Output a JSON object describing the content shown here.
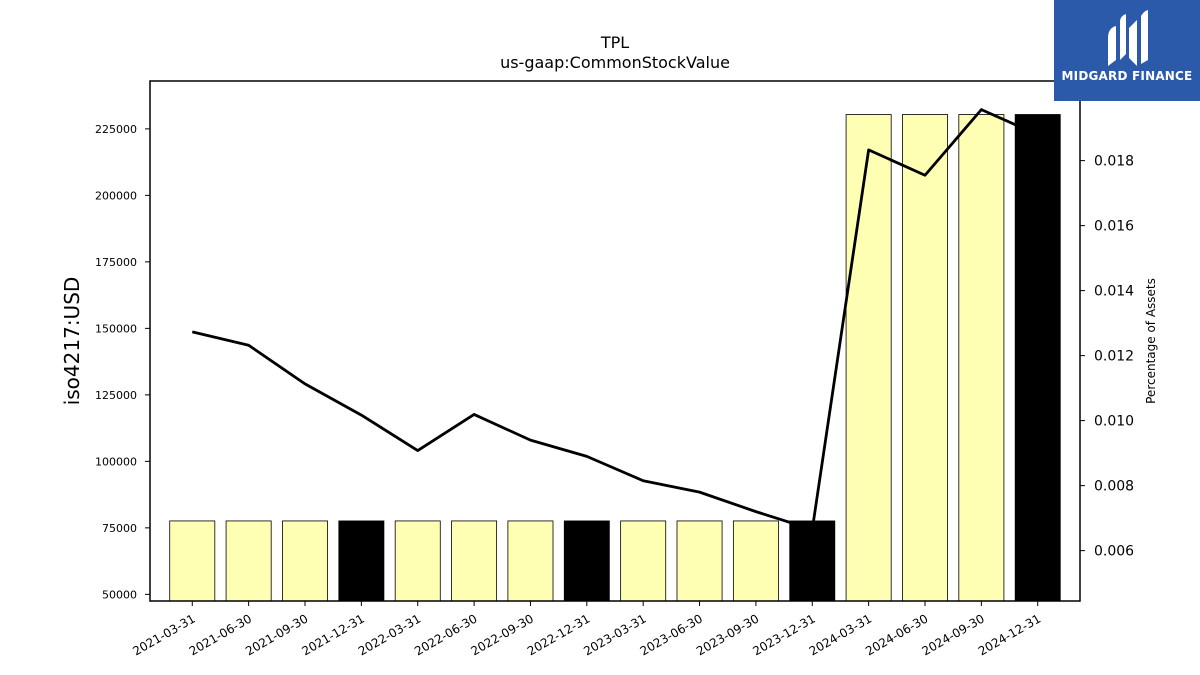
{
  "brand": {
    "name": "MIDGARD FINANCE",
    "bg_color": "#2b5aaa"
  },
  "chart_data": {
    "type": "bar",
    "title": "TPL",
    "subtitle": "us-gaap:CommonStockValue",
    "ylabel": "iso4217:USD",
    "y2label": "Percentage of Assets",
    "categories": [
      "2021-03-31",
      "2021-06-30",
      "2021-09-30",
      "2021-12-31",
      "2022-03-31",
      "2022-06-30",
      "2022-09-30",
      "2022-12-31",
      "2023-03-31",
      "2023-06-30",
      "2023-09-30",
      "2023-12-31",
      "2024-03-31",
      "2024-06-30",
      "2024-09-30",
      "2024-12-31"
    ],
    "ylim": [
      47500,
      243000
    ],
    "y2lim": [
      0.00445,
      0.02045
    ],
    "yticks": [
      50000,
      75000,
      100000,
      125000,
      150000,
      175000,
      200000,
      225000
    ],
    "y2ticks": [
      "0.006",
      "0.008",
      "0.010",
      "0.012",
      "0.014",
      "0.016",
      "0.018"
    ],
    "series": [
      {
        "type": "bar",
        "values": [
          77600,
          77600,
          77600,
          77600,
          77600,
          77600,
          77600,
          77600,
          77600,
          77600,
          77600,
          77600,
          230400,
          230400,
          230400,
          230400
        ],
        "colors": [
          "#ffffb3",
          "#ffffb3",
          "#ffffb3",
          "#000000",
          "#ffffb3",
          "#ffffb3",
          "#ffffb3",
          "#000000",
          "#ffffb3",
          "#ffffb3",
          "#ffffb3",
          "#000000",
          "#ffffb3",
          "#ffffb3",
          "#ffffb3",
          "#000000"
        ]
      },
      {
        "type": "line",
        "axis": "right",
        "color": "#000000",
        "values": [
          0.01273,
          0.01232,
          0.01113,
          0.01017,
          0.00908,
          0.01019,
          0.0094,
          0.0089,
          0.00815,
          0.0078,
          0.0072,
          0.00665,
          0.01833,
          0.01755,
          0.01957,
          0.0188
        ]
      }
    ]
  }
}
